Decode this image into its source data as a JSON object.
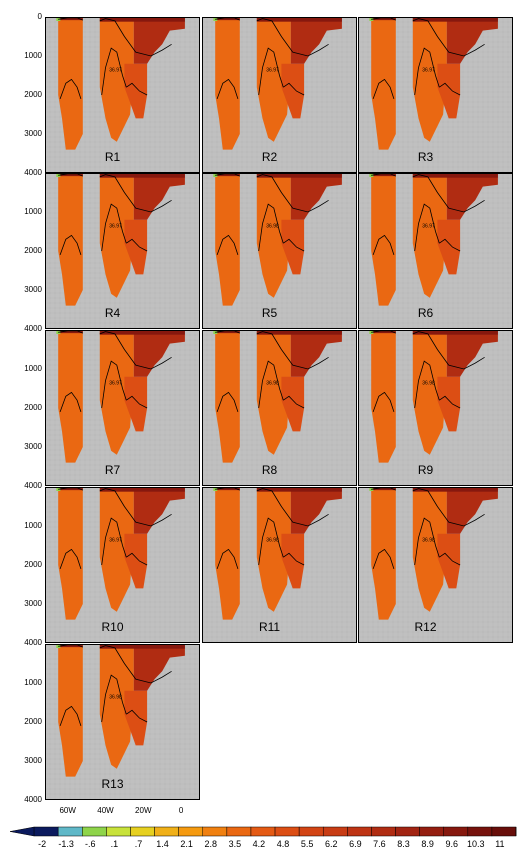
{
  "chart_data": {
    "type": "heatmap",
    "panel_labels": [
      "R1",
      "R2",
      "R3",
      "R4",
      "R5",
      "R6",
      "R7",
      "R8",
      "R9",
      "R10",
      "R11",
      "R12",
      "R13"
    ],
    "y_ticks": [
      "0",
      "1000",
      "2000",
      "3000",
      "4000"
    ],
    "x_ticks": [
      "60W",
      "40W",
      "20W",
      "0"
    ],
    "ylim": [
      4000,
      0
    ],
    "xlim": [
      72,
      -10
    ],
    "colorbar": {
      "labels": [
        "-2",
        "-1.3",
        "-.6",
        ".1",
        ".7",
        "1.4",
        "2.1",
        "2.8",
        "3.5",
        "4.2",
        "4.8",
        "5.5",
        "6.2",
        "6.9",
        "7.6",
        "8.3",
        "8.9",
        "9.6",
        "10.3",
        "11"
      ],
      "colors": [
        "#0b1a5e",
        "#5fb8c8",
        "#8ed44a",
        "#c8e23a",
        "#e6d020",
        "#f0b018",
        "#f59a10",
        "#f08010",
        "#ea6812",
        "#e45a14",
        "#dc4e14",
        "#d24414",
        "#c83c14",
        "#be3414",
        "#b02c12",
        "#a22412",
        "#941e10",
        "#86180e",
        "#76120c",
        "#680e0a"
      ]
    },
    "contour_labels": [
      "36.97",
      "36.97",
      "36.97",
      "36.97",
      "36.98",
      "36.97",
      "36.97",
      "36.98",
      "36.98",
      "36.97",
      "36.98",
      "36.98",
      "36.98"
    ],
    "grid": true
  },
  "colors": {
    "land": "#c0c0c0",
    "deep": "#ea6812",
    "mid": "#dc4e14",
    "upper": "#b02c12",
    "surface": "#86180e",
    "contour": "#000000"
  }
}
